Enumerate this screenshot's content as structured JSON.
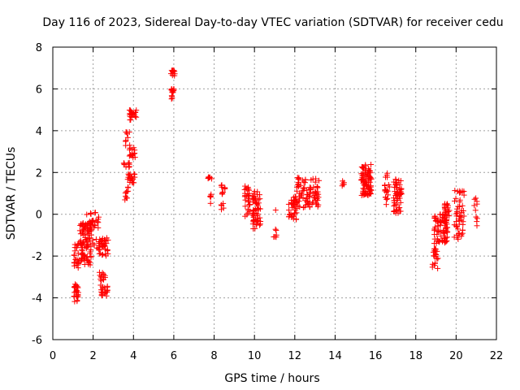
{
  "chart_data": {
    "type": "scatter",
    "title": "Day 116 of 2023, Sidereal Day-to-day VTEC variation (SDTVAR) for receiver cedu",
    "xlabel": "GPS time / hours",
    "ylabel": "SDTVAR / TECUs",
    "xlim": [
      0,
      22
    ],
    "ylim": [
      -6,
      8
    ],
    "xticks": [
      "0",
      "2",
      "4",
      "6",
      "8",
      "10",
      "12",
      "14",
      "16",
      "18",
      "20",
      "22"
    ],
    "yticks": [
      "-6",
      "-4",
      "-2",
      "0",
      "2",
      "4",
      "6",
      "8"
    ],
    "grid": true,
    "marker": "+",
    "color": "#ff0000",
    "clusters": [
      {
        "x": [
          1.05,
          1.3
        ],
        "y": [
          -4.2,
          -3.3
        ],
        "n": 25
      },
      {
        "x": [
          1.05,
          1.3
        ],
        "y": [
          -2.6,
          -1.4
        ],
        "n": 22
      },
      {
        "x": [
          1.3,
          1.9
        ],
        "y": [
          -2.5,
          -0.4
        ],
        "n": 80
      },
      {
        "x": [
          1.6,
          2.3
        ],
        "y": [
          -1.8,
          0.1
        ],
        "n": 40
      },
      {
        "x": [
          1.7,
          2.1
        ],
        "y": [
          -0.8,
          -0.3
        ],
        "n": 15
      },
      {
        "x": [
          2.3,
          2.75
        ],
        "y": [
          -2.0,
          -1.1
        ],
        "n": 35
      },
      {
        "x": [
          2.3,
          2.6
        ],
        "y": [
          -3.4,
          -2.6
        ],
        "n": 15
      },
      {
        "x": [
          2.4,
          2.75
        ],
        "y": [
          -4.0,
          -3.4
        ],
        "n": 20
      },
      {
        "x": [
          3.5,
          3.75
        ],
        "y": [
          0.6,
          1.3
        ],
        "n": 10
      },
      {
        "x": [
          3.5,
          3.8
        ],
        "y": [
          2.2,
          2.5
        ],
        "n": 10
      },
      {
        "x": [
          3.7,
          4.1
        ],
        "y": [
          1.5,
          2.0
        ],
        "n": 20
      },
      {
        "x": [
          3.8,
          4.1
        ],
        "y": [
          2.6,
          3.3
        ],
        "n": 15
      },
      {
        "x": [
          3.8,
          4.15
        ],
        "y": [
          4.5,
          5.0
        ],
        "n": 20
      },
      {
        "x": [
          3.6,
          3.9
        ],
        "y": [
          3.0,
          4.1
        ],
        "n": 10
      },
      {
        "x": [
          5.85,
          6.05
        ],
        "y": [
          6.6,
          6.9
        ],
        "n": 12
      },
      {
        "x": [
          5.85,
          6.05
        ],
        "y": [
          5.8,
          6.1
        ],
        "n": 12
      },
      {
        "x": [
          5.85,
          5.95
        ],
        "y": [
          5.5,
          5.7
        ],
        "n": 4
      },
      {
        "x": [
          7.7,
          7.95
        ],
        "y": [
          1.7,
          1.8
        ],
        "n": 6
      },
      {
        "x": [
          7.75,
          7.85
        ],
        "y": [
          0.1,
          1.1
        ],
        "n": 5
      },
      {
        "x": [
          8.35,
          8.55
        ],
        "y": [
          0.9,
          1.4
        ],
        "n": 10
      },
      {
        "x": [
          8.35,
          8.55
        ],
        "y": [
          0.2,
          0.6
        ],
        "n": 5
      },
      {
        "x": [
          9.5,
          9.8
        ],
        "y": [
          -0.1,
          1.4
        ],
        "n": 30
      },
      {
        "x": [
          9.9,
          10.3
        ],
        "y": [
          -0.7,
          1.1
        ],
        "n": 60
      },
      {
        "x": [
          10.95,
          11.1
        ],
        "y": [
          -1.1,
          -0.7
        ],
        "n": 6
      },
      {
        "x": [
          11.05,
          11.1
        ],
        "y": [
          0.2,
          0.2
        ],
        "n": 1
      },
      {
        "x": [
          11.7,
          12.1
        ],
        "y": [
          -0.3,
          0.9
        ],
        "n": 40
      },
      {
        "x": [
          12.1,
          12.6
        ],
        "y": [
          0.3,
          1.8
        ],
        "n": 40
      },
      {
        "x": [
          12.6,
          13.2
        ],
        "y": [
          0.3,
          1.7
        ],
        "n": 50
      },
      {
        "x": [
          14.35,
          14.45
        ],
        "y": [
          0.7,
          1.7
        ],
        "n": 5
      },
      {
        "x": [
          15.3,
          15.8
        ],
        "y": [
          0.9,
          2.4
        ],
        "n": 90
      },
      {
        "x": [
          16.45,
          16.7
        ],
        "y": [
          0.3,
          2.1
        ],
        "n": 20
      },
      {
        "x": [
          16.9,
          17.3
        ],
        "y": [
          0.0,
          1.7
        ],
        "n": 55
      },
      {
        "x": [
          18.8,
          19.1
        ],
        "y": [
          -2.6,
          -1.6
        ],
        "n": 20
      },
      {
        "x": [
          18.9,
          19.6
        ],
        "y": [
          -1.4,
          0.1
        ],
        "n": 80
      },
      {
        "x": [
          19.4,
          19.7
        ],
        "y": [
          -0.4,
          0.5
        ],
        "n": 20
      },
      {
        "x": [
          19.9,
          20.4
        ],
        "y": [
          -1.2,
          1.2
        ],
        "n": 50
      },
      {
        "x": [
          20.9,
          21.05
        ],
        "y": [
          -0.9,
          0.9
        ],
        "n": 10
      }
    ]
  }
}
